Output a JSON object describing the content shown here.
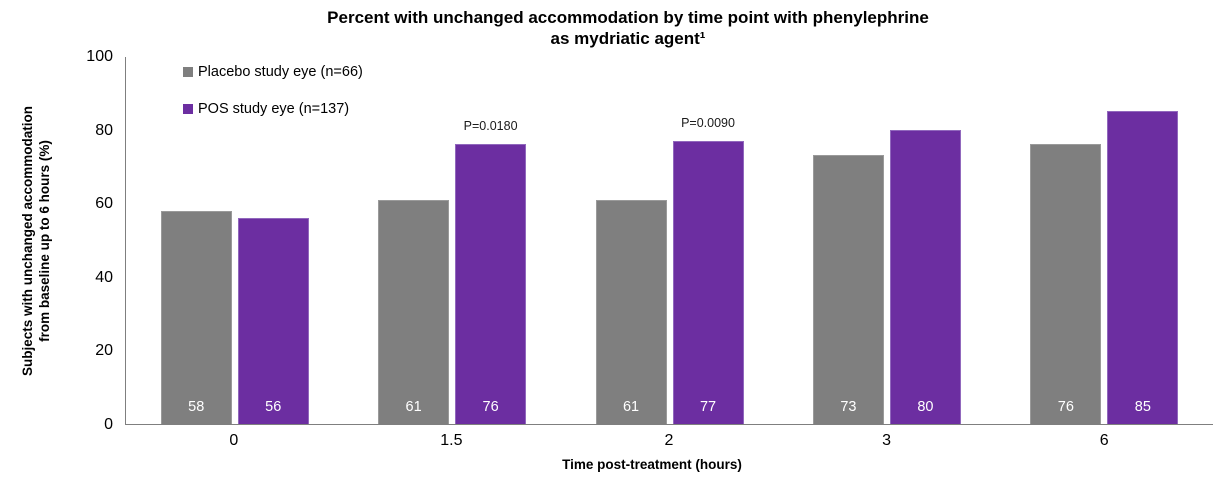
{
  "title": {
    "line1": "Percent with unchanged accommodation by time point with phenylephrine",
    "line2": "as mydriatic agent¹"
  },
  "legend": [
    {
      "label": "Placebo study eye (n=66)",
      "color": "#7f7f7f"
    },
    {
      "label": "POS study eye (n=137)",
      "color": "#6c2ea1"
    }
  ],
  "axes": {
    "y_label_line1": "Subjects with unchanged accommodation",
    "y_label_line2": "from baseline up to 6 hours (%)",
    "x_label": "Time post-treatment (hours)",
    "y_ticks": [
      0,
      20,
      40,
      60,
      80,
      100
    ],
    "x_ticks": [
      "0",
      "1.5",
      "2",
      "3",
      "6"
    ]
  },
  "colors": {
    "placebo_bar": "#7f7f7f",
    "pos_bar": "#6c2ea1",
    "axis_line": "#7f7f7f",
    "bar_value_text": "#ffffff"
  },
  "chart_data": {
    "type": "bar",
    "title": "Percent with unchanged accommodation by time point with phenylephrine as mydriatic agent¹",
    "categories": [
      "0",
      "1.5",
      "2",
      "3",
      "6"
    ],
    "series": [
      {
        "name": "Placebo study eye (n=66)",
        "color": "#7f7f7f",
        "values": [
          58,
          61,
          61,
          73,
          76
        ]
      },
      {
        "name": "POS study eye (n=137)",
        "color": "#6c2ea1",
        "values": [
          56,
          76,
          77,
          80,
          85
        ]
      }
    ],
    "annotations": [
      {
        "category": "1.5",
        "series": "POS study eye (n=137)",
        "text": "P=0.0180"
      },
      {
        "category": "2",
        "series": "POS study eye (n=137)",
        "text": "P=0.0090"
      }
    ],
    "xlabel": "Time post-treatment (hours)",
    "ylabel": "Subjects with unchanged accommodation from baseline up to 6 hours (%)",
    "ylim": [
      0,
      100
    ],
    "grid": false,
    "data_labels": "inside-base",
    "legend_position": "top-left-inside"
  }
}
